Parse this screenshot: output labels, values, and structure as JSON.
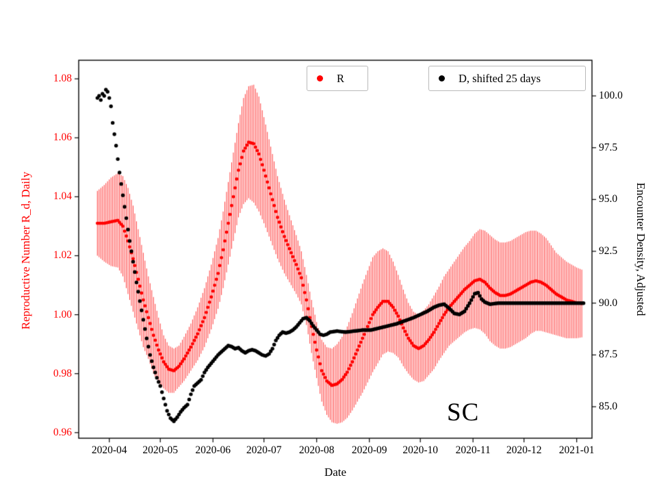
{
  "chart_data": {
    "type": "scatter",
    "title": "",
    "xlabel": "Date",
    "annotation": "SC",
    "background": "#ffffff",
    "x_domain": [
      73,
      375
    ],
    "x_ticks": [
      {
        "label": "2020-04",
        "d": 91
      },
      {
        "label": "2020-05",
        "d": 121
      },
      {
        "label": "2020-06",
        "d": 152
      },
      {
        "label": "2020-07",
        "d": 182
      },
      {
        "label": "2020-08",
        "d": 213
      },
      {
        "label": "2020-09",
        "d": 244
      },
      {
        "label": "2020-10",
        "d": 274
      },
      {
        "label": "2020-11",
        "d": 305
      },
      {
        "label": "2020-12",
        "d": 335
      },
      {
        "label": "2021-01",
        "d": 366
      }
    ],
    "left_axis": {
      "label": "Reproductive Number R_d, Daily",
      "color": "#ff0000",
      "domain": [
        0.9581,
        1.0863
      ],
      "ticks": [
        {
          "label": "0.96",
          "v": 0.96
        },
        {
          "label": "0.98",
          "v": 0.98
        },
        {
          "label": "1.00",
          "v": 1.0
        },
        {
          "label": "1.02",
          "v": 1.02
        },
        {
          "label": "1.04",
          "v": 1.04
        },
        {
          "label": "1.06",
          "v": 1.06
        },
        {
          "label": "1.08",
          "v": 1.08
        }
      ]
    },
    "right_axis": {
      "label": "Encounter Density, Adjusted",
      "color": "#000000",
      "domain": [
        83.48,
        101.72
      ],
      "ticks": [
        {
          "label": "85.0",
          "v": 85.0
        },
        {
          "label": "87.5",
          "v": 87.5
        },
        {
          "label": "90.0",
          "v": 90.0
        },
        {
          "label": "92.5",
          "v": 92.5
        },
        {
          "label": "95.0",
          "v": 95.0
        },
        {
          "label": "97.5",
          "v": 97.5
        },
        {
          "label": "100.0",
          "v": 100.0
        }
      ]
    },
    "series": [
      {
        "name": "R",
        "axis": "left",
        "color": "#ff0000",
        "marker_radius": 2.4,
        "error_bars": true,
        "points": [
          [
            84,
            1.031,
            0.011
          ],
          [
            88,
            1.031,
            0.013
          ],
          [
            92,
            1.0315,
            0.015
          ],
          [
            96,
            1.032,
            0.016
          ],
          [
            99,
            1.03,
            0.017
          ],
          [
            102,
            1.025,
            0.018
          ],
          [
            105,
            1.019,
            0.018
          ],
          [
            108,
            1.012,
            0.017
          ],
          [
            111,
            1.005,
            0.016
          ],
          [
            114,
            0.999,
            0.014
          ],
          [
            117,
            0.993,
            0.013
          ],
          [
            120,
            0.988,
            0.011
          ],
          [
            123,
            0.984,
            0.009
          ],
          [
            126,
            0.9815,
            0.008
          ],
          [
            129,
            0.981,
            0.0075
          ],
          [
            132,
            0.9825,
            0.007
          ],
          [
            135,
            0.985,
            0.0075
          ],
          [
            139,
            0.989,
            0.008
          ],
          [
            143,
            0.9935,
            0.009
          ],
          [
            147,
            0.999,
            0.01
          ],
          [
            151,
            1.006,
            0.011
          ],
          [
            155,
            1.014,
            0.012
          ],
          [
            158,
            1.022,
            0.013
          ],
          [
            161,
            1.031,
            0.014
          ],
          [
            164,
            1.04,
            0.015
          ],
          [
            167,
            1.049,
            0.016
          ],
          [
            170,
            1.0555,
            0.018
          ],
          [
            173,
            1.0585,
            0.019
          ],
          [
            176,
            1.058,
            0.02
          ],
          [
            179,
            1.0545,
            0.0195
          ],
          [
            182,
            1.049,
            0.018
          ],
          [
            186,
            1.041,
            0.016
          ],
          [
            190,
            1.033,
            0.014
          ],
          [
            194,
            1.0265,
            0.0125
          ],
          [
            198,
            1.021,
            0.011
          ],
          [
            201,
            1.017,
            0.01
          ],
          [
            204,
            1.0125,
            0.009
          ],
          [
            207,
            1.005,
            0.0085
          ],
          [
            210,
            0.996,
            0.009
          ],
          [
            213,
            0.988,
            0.0095
          ],
          [
            216,
            0.981,
            0.0105
          ],
          [
            219,
            0.9775,
            0.0115
          ],
          [
            222,
            0.976,
            0.0125
          ],
          [
            225,
            0.9765,
            0.0135
          ],
          [
            228,
            0.978,
            0.0145
          ],
          [
            231,
            0.9805,
            0.0155
          ],
          [
            234,
            0.984,
            0.0165
          ],
          [
            237,
            0.988,
            0.0175
          ],
          [
            240,
            0.992,
            0.0185
          ],
          [
            243,
            0.996,
            0.019
          ],
          [
            246,
            1.0,
            0.0195
          ],
          [
            249,
            1.0025,
            0.019
          ],
          [
            252,
            1.0045,
            0.018
          ],
          [
            255,
            1.0045,
            0.017
          ],
          [
            258,
            1.0025,
            0.0155
          ],
          [
            261,
            0.9995,
            0.014
          ],
          [
            264,
            0.9955,
            0.013
          ],
          [
            267,
            0.992,
            0.012
          ],
          [
            270,
            0.9895,
            0.0115
          ],
          [
            273,
            0.9885,
            0.0115
          ],
          [
            276,
            0.9895,
            0.012
          ],
          [
            279,
            0.9915,
            0.012
          ],
          [
            282,
            0.994,
            0.0125
          ],
          [
            285,
            0.997,
            0.0125
          ],
          [
            288,
            1.0,
            0.013
          ],
          [
            291,
            1.0025,
            0.013
          ],
          [
            294,
            1.0045,
            0.0135
          ],
          [
            297,
            1.0065,
            0.014
          ],
          [
            300,
            1.0085,
            0.0145
          ],
          [
            303,
            1.01,
            0.015
          ],
          [
            306,
            1.0115,
            0.016
          ],
          [
            309,
            1.012,
            0.017
          ],
          [
            312,
            1.011,
            0.0175
          ],
          [
            315,
            1.009,
            0.018
          ],
          [
            318,
            1.0075,
            0.018
          ],
          [
            321,
            1.0065,
            0.018
          ],
          [
            324,
            1.0065,
            0.018
          ],
          [
            327,
            1.007,
            0.018
          ],
          [
            330,
            1.008,
            0.018
          ],
          [
            333,
            1.009,
            0.018
          ],
          [
            336,
            1.01,
            0.018
          ],
          [
            339,
            1.011,
            0.0175
          ],
          [
            342,
            1.0115,
            0.017
          ],
          [
            345,
            1.011,
            0.0165
          ],
          [
            348,
            1.01,
            0.016
          ],
          [
            351,
            1.0085,
            0.015
          ],
          [
            354,
            1.007,
            0.014
          ],
          [
            357,
            1.006,
            0.0135
          ],
          [
            360,
            1.005,
            0.013
          ],
          [
            363,
            1.0045,
            0.0125
          ],
          [
            366,
            1.004,
            0.012
          ],
          [
            369,
            1.0038,
            0.0115
          ]
        ]
      },
      {
        "name": "D, shifted 25 days",
        "axis": "right",
        "color": "#000000",
        "marker_radius": 2.7,
        "error_bars": false,
        "points": [
          [
            84,
            99.9
          ],
          [
            85,
            100.0
          ],
          [
            86,
            99.8
          ],
          [
            87,
            100.1
          ],
          [
            88,
            100.0
          ],
          [
            89,
            100.3
          ],
          [
            90,
            100.2
          ],
          [
            91,
            99.9
          ],
          [
            92,
            99.5
          ],
          [
            93,
            98.7
          ],
          [
            95,
            97.6
          ],
          [
            97,
            96.3
          ],
          [
            99,
            95.2
          ],
          [
            101,
            94.1
          ],
          [
            103,
            93.0
          ],
          [
            105,
            92.0
          ],
          [
            107,
            91.0
          ],
          [
            109,
            90.1
          ],
          [
            111,
            89.2
          ],
          [
            113,
            88.3
          ],
          [
            115,
            87.5
          ],
          [
            117,
            86.9
          ],
          [
            119,
            86.4
          ],
          [
            121,
            86.0
          ],
          [
            123,
            85.4
          ],
          [
            125,
            84.8
          ],
          [
            127,
            84.45
          ],
          [
            129,
            84.3
          ],
          [
            131,
            84.5
          ],
          [
            133,
            84.75
          ],
          [
            135,
            84.95
          ],
          [
            137,
            85.1
          ],
          [
            139,
            85.6
          ],
          [
            141,
            86.0
          ],
          [
            143,
            86.15
          ],
          [
            145,
            86.3
          ],
          [
            147,
            86.65
          ],
          [
            149,
            86.9
          ],
          [
            151,
            87.1
          ],
          [
            153,
            87.3
          ],
          [
            155,
            87.5
          ],
          [
            157,
            87.65
          ],
          [
            159,
            87.8
          ],
          [
            161,
            87.95
          ],
          [
            163,
            87.9
          ],
          [
            165,
            87.8
          ],
          [
            167,
            87.85
          ],
          [
            169,
            87.7
          ],
          [
            171,
            87.6
          ],
          [
            173,
            87.7
          ],
          [
            175,
            87.75
          ],
          [
            177,
            87.7
          ],
          [
            179,
            87.6
          ],
          [
            181,
            87.5
          ],
          [
            183,
            87.45
          ],
          [
            185,
            87.55
          ],
          [
            187,
            87.8
          ],
          [
            189,
            88.2
          ],
          [
            191,
            88.45
          ],
          [
            193,
            88.6
          ],
          [
            195,
            88.55
          ],
          [
            197,
            88.6
          ],
          [
            199,
            88.7
          ],
          [
            201,
            88.85
          ],
          [
            203,
            89.05
          ],
          [
            205,
            89.25
          ],
          [
            207,
            89.3
          ],
          [
            209,
            89.15
          ],
          [
            211,
            88.9
          ],
          [
            213,
            88.7
          ],
          [
            215,
            88.5
          ],
          [
            217,
            88.45
          ],
          [
            219,
            88.5
          ],
          [
            221,
            88.6
          ],
          [
            225,
            88.65
          ],
          [
            230,
            88.6
          ],
          [
            235,
            88.65
          ],
          [
            240,
            88.7
          ],
          [
            245,
            88.7
          ],
          [
            250,
            88.8
          ],
          [
            255,
            88.9
          ],
          [
            260,
            89.0
          ],
          [
            265,
            89.15
          ],
          [
            270,
            89.3
          ],
          [
            274,
            89.45
          ],
          [
            278,
            89.6
          ],
          [
            282,
            89.8
          ],
          [
            285,
            89.9
          ],
          [
            288,
            89.95
          ],
          [
            291,
            89.75
          ],
          [
            294,
            89.5
          ],
          [
            297,
            89.45
          ],
          [
            300,
            89.6
          ],
          [
            303,
            90.0
          ],
          [
            306,
            90.45
          ],
          [
            308,
            90.5
          ],
          [
            310,
            90.2
          ],
          [
            312,
            90.05
          ],
          [
            315,
            89.95
          ],
          [
            320,
            90.0
          ],
          [
            325,
            90.0
          ],
          [
            330,
            90.0
          ],
          [
            335,
            90.0
          ],
          [
            340,
            90.0
          ],
          [
            345,
            90.0
          ],
          [
            350,
            90.0
          ],
          [
            355,
            90.0
          ],
          [
            360,
            90.0
          ],
          [
            365,
            90.0
          ],
          [
            370,
            90.0
          ]
        ]
      }
    ]
  }
}
